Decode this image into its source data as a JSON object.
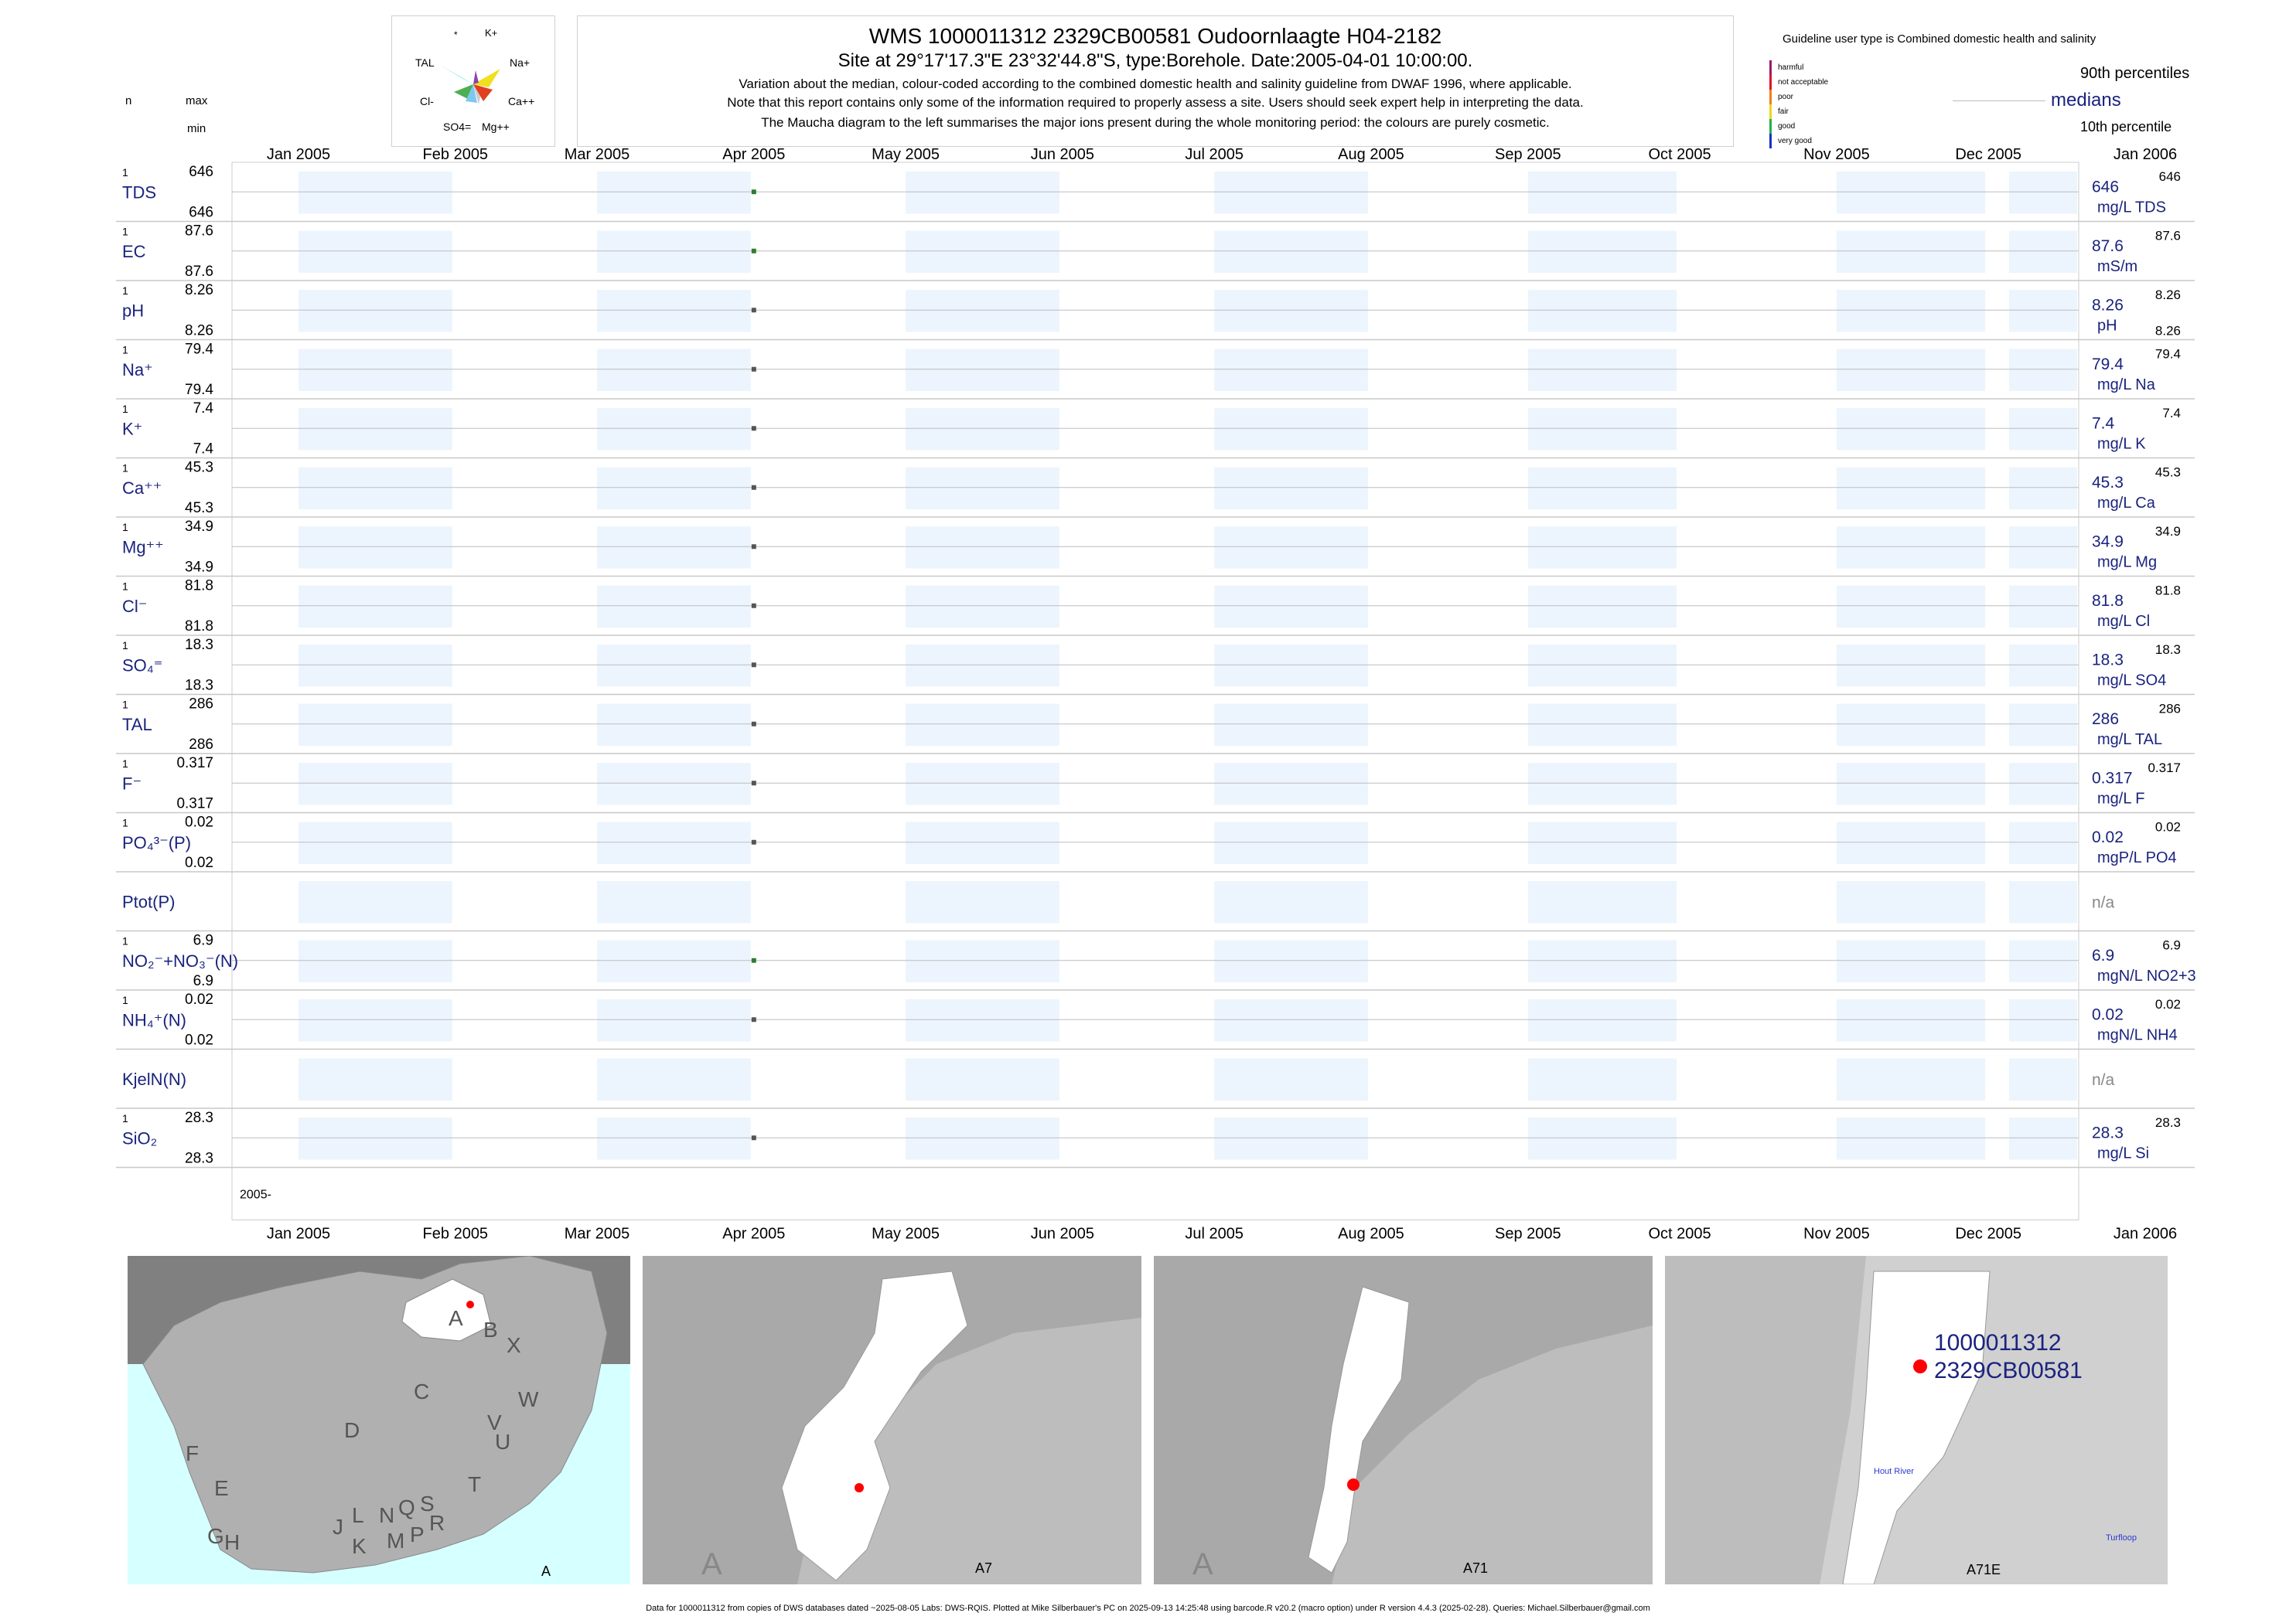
{
  "header": {
    "title": "WMS 1000011312 2329CB00581 Oudoornlaagte H04-2182",
    "subtitle": "Site at 29°17'17.3\"E 23°32'44.8\"S, type:Borehole. Date:2005-04-01 10:00:00.",
    "note1": "Variation about the median,  colour-coded according to the combined domestic health and salinity guideline from DWAF 1996, where applicable.",
    "note2": "Note that this report contains only some of the information required to properly assess a site. Users should seek expert help in interpreting the data.",
    "note3": "The Maucha diagram to the left summarises the major ions present during the whole monitoring period: the colours are purely cosmetic."
  },
  "maucha": {
    "labels": [
      "*",
      "K+",
      "TAL",
      "Na+",
      "Cl-",
      "Ca++",
      "SO4=",
      "Mg++"
    ]
  },
  "left_header": {
    "n": "n",
    "max": "max",
    "min": "min"
  },
  "legend": {
    "guideline_title": "Guideline user type is Combined domestic health and salinity",
    "levels": [
      "harmful",
      "not acceptable",
      "poor",
      "fair",
      "good",
      "very good"
    ],
    "level_colors": [
      "#9b1b6b",
      "#e0102a",
      "#f08010",
      "#e8d820",
      "#22b04a",
      "#1a30c0"
    ],
    "p90": "90th percentiles",
    "medians": "medians",
    "p10": "10th percentile"
  },
  "chart_data": {
    "type": "scatter",
    "x_range": [
      "2005-01-01",
      "2006-01-01"
    ],
    "x_ticks": [
      "Jan 2005",
      "Feb 2005",
      "Mar 2005",
      "Apr 2005",
      "May 2005",
      "Jun 2005",
      "Jul 2005",
      "Aug 2005",
      "Sep 2005",
      "Oct 2005",
      "Nov 2005",
      "Dec 2005",
      "Jan 2006"
    ],
    "year_label": "2005-",
    "sample_date": "2005-04-01",
    "variables": [
      {
        "name": "TDS",
        "n": "1",
        "max": "646",
        "min": "646",
        "value": 646,
        "median_label": "646",
        "p90_label": "646",
        "p10_label": "",
        "unit": "mg/L TDS",
        "color": "#2e7d32"
      },
      {
        "name": "EC",
        "n": "1",
        "max": "87.6",
        "min": "87.6",
        "value": 87.6,
        "median_label": "87.6",
        "p90_label": "87.6",
        "p10_label": "",
        "unit": "mS/m",
        "color": "#2e7d32"
      },
      {
        "name": "pH",
        "n": "1",
        "max": "8.26",
        "min": "8.26",
        "value": 8.26,
        "median_label": "8.26",
        "p90_label": "8.26",
        "p10_label": "8.26",
        "unit": "pH",
        "color": "#555555"
      },
      {
        "name": "Na⁺",
        "n": "1",
        "max": "79.4",
        "min": "79.4",
        "value": 79.4,
        "median_label": "79.4",
        "p90_label": "79.4",
        "p10_label": "",
        "unit": "mg/L Na",
        "color": "#555555"
      },
      {
        "name": "K⁺",
        "n": "1",
        "max": "7.4",
        "min": "7.4",
        "value": 7.4,
        "median_label": "7.4",
        "p90_label": "7.4",
        "p10_label": "",
        "unit": "mg/L K",
        "color": "#555555"
      },
      {
        "name": "Ca⁺⁺",
        "n": "1",
        "max": "45.3",
        "min": "45.3",
        "value": 45.3,
        "median_label": "45.3",
        "p90_label": "45.3",
        "p10_label": "",
        "unit": "mg/L Ca",
        "color": "#555555"
      },
      {
        "name": "Mg⁺⁺",
        "n": "1",
        "max": "34.9",
        "min": "34.9",
        "value": 34.9,
        "median_label": "34.9",
        "p90_label": "34.9",
        "p10_label": "",
        "unit": "mg/L Mg",
        "color": "#555555"
      },
      {
        "name": "Cl⁻",
        "n": "1",
        "max": "81.8",
        "min": "81.8",
        "value": 81.8,
        "median_label": "81.8",
        "p90_label": "81.8",
        "p10_label": "",
        "unit": "mg/L Cl",
        "color": "#555555"
      },
      {
        "name": "SO₄⁼",
        "n": "1",
        "max": "18.3",
        "min": "18.3",
        "value": 18.3,
        "median_label": "18.3",
        "p90_label": "18.3",
        "p10_label": "",
        "unit": "mg/L SO4",
        "color": "#555555"
      },
      {
        "name": "TAL",
        "n": "1",
        "max": "286",
        "min": "286",
        "value": 286,
        "median_label": "286",
        "p90_label": "286",
        "p10_label": "",
        "unit": "mg/L TAL",
        "color": "#555555"
      },
      {
        "name": "F⁻",
        "n": "1",
        "max": "0.317",
        "min": "0.317",
        "value": 0.317,
        "median_label": "0.317",
        "p90_label": "0.317",
        "p10_label": "",
        "unit": "mg/L F",
        "color": "#555555"
      },
      {
        "name": "PO₄³⁻(P)",
        "n": "1",
        "max": "0.02",
        "min": "0.02",
        "value": 0.02,
        "median_label": "0.02",
        "p90_label": "0.02",
        "p10_label": "",
        "unit": "mgP/L PO4",
        "color": "#555555"
      },
      {
        "name": "Ptot(P)",
        "n": "",
        "max": "",
        "min": "",
        "value": null,
        "median_label": "n/a",
        "p90_label": "",
        "p10_label": "",
        "unit": "",
        "color": "#555555"
      },
      {
        "name": "NO₂⁻+NO₃⁻(N)",
        "n": "1",
        "max": "6.9",
        "min": "6.9",
        "value": 6.9,
        "median_label": "6.9",
        "p90_label": "6.9",
        "p10_label": "",
        "unit": "mgN/L NO2+3",
        "color": "#2e7d32"
      },
      {
        "name": "NH₄⁺(N)",
        "n": "1",
        "max": "0.02",
        "min": "0.02",
        "value": 0.02,
        "median_label": "0.02",
        "p90_label": "0.02",
        "p10_label": "",
        "unit": "mgN/L NH4",
        "color": "#555555"
      },
      {
        "name": "KjelN(N)",
        "n": "",
        "max": "",
        "min": "",
        "value": null,
        "median_label": "n/a",
        "p90_label": "",
        "p10_label": "",
        "unit": "",
        "color": "#555555"
      },
      {
        "name": "SiO₂",
        "n": "1",
        "max": "28.3",
        "min": "28.3",
        "value": 28.3,
        "median_label": "28.3",
        "p90_label": "28.3",
        "p10_label": "",
        "unit": "mg/L Si",
        "color": "#555555"
      }
    ]
  },
  "maps": {
    "map1": {
      "label": "A",
      "regions": [
        "A",
        "B",
        "X",
        "C",
        "W",
        "D",
        "V",
        "U",
        "F",
        "T",
        "E",
        "L",
        "N",
        "Q",
        "S",
        "J",
        "R",
        "G",
        "H",
        "K",
        "M",
        "P"
      ]
    },
    "map2": {
      "label": "A7",
      "corner": "A"
    },
    "map3": {
      "label": "A71",
      "corner": "A"
    },
    "map4": {
      "label": "A71E",
      "site_line1": "1000011312",
      "site_line2": "2329CB00581",
      "river1": "Hout River",
      "river2": "Turfloop"
    }
  },
  "footer": "Data for 1000011312 from copies of DWS databases dated ~2025-08-05 Labs: DWS-RQIS. Plotted at Mike Silberbauer's PC on 2025-09-13 14:25:48 using barcode.R v20.2 (macro option) under R version 4.4.3 (2025-02-28). Queries: Michael.Silberbauer@gmail.com"
}
